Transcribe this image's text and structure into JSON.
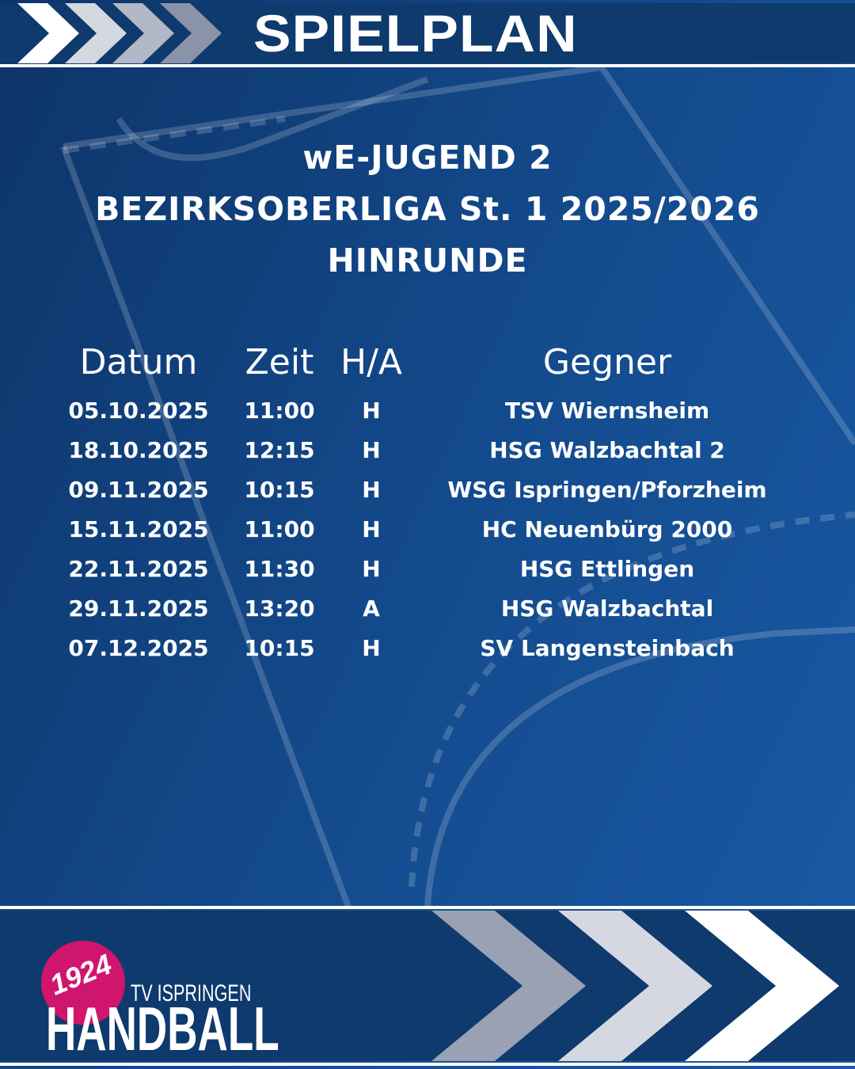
{
  "header": {
    "title": "SPIELPLAN"
  },
  "heading": {
    "line1": "wE-JUGEND 2",
    "line2": "BEZIRKSOBERLIGA St. 1 2025/2026",
    "line3": "HINRUNDE"
  },
  "table": {
    "columns": [
      "Datum",
      "Zeit",
      "H/A",
      "Gegner"
    ],
    "rows": [
      [
        "05.10.2025",
        "11:00",
        "H",
        "TSV Wiernsheim"
      ],
      [
        "18.10.2025",
        "12:15",
        "H",
        "HSG Walzbachtal 2"
      ],
      [
        "09.11.2025",
        "10:15",
        "H",
        "WSG Ispringen/Pforzheim"
      ],
      [
        "15.11.2025",
        "11:00",
        "H",
        "HC Neuenbürg 2000"
      ],
      [
        "22.11.2025",
        "11:30",
        "H",
        "HSG Ettlingen"
      ],
      [
        "29.11.2025",
        "13:20",
        "A",
        "HSG Walzbachtal"
      ],
      [
        "07.12.2025",
        "10:15",
        "H",
        "SV Langensteinbach"
      ]
    ]
  },
  "logo": {
    "year": "1924",
    "club": "TV ISPRINGEN",
    "sport": "HANDBALL"
  },
  "colors": {
    "navy": "#0e3a6d",
    "accent": "#d0156e"
  }
}
